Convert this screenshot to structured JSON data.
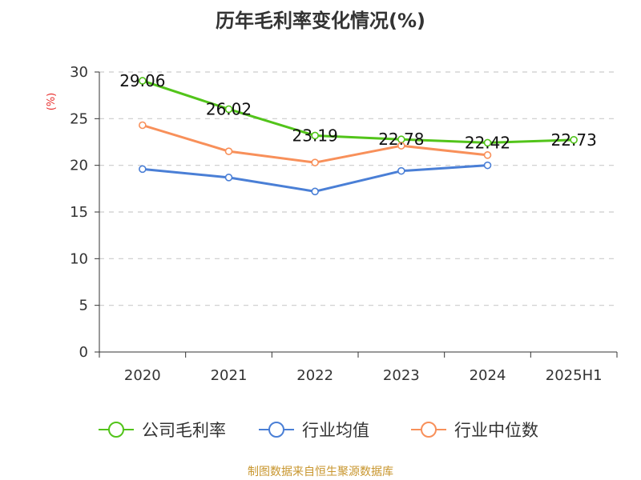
{
  "chart_data": {
    "type": "line",
    "title": "历年毛利率变化情况(%)",
    "ylabel": "(%)",
    "categories": [
      "2020",
      "2021",
      "2022",
      "2023",
      "2024",
      "2025H1"
    ],
    "ylim": [
      0,
      30
    ],
    "yticks": [
      0,
      5,
      10,
      15,
      20,
      25,
      30
    ],
    "grid": "horizontal dashed",
    "legend_position": "bottom",
    "series": [
      {
        "name": "公司毛利率",
        "color": "#52c41a",
        "values": [
          29.06,
          26.02,
          23.19,
          22.78,
          22.42,
          22.73
        ],
        "labels": [
          "29.06",
          "26.02",
          "23.19",
          "22.78",
          "22.42",
          "22.73"
        ]
      },
      {
        "name": "行业均值",
        "color": "#4a7fd6",
        "values": [
          19.6,
          18.7,
          17.2,
          19.4,
          20.0,
          null
        ]
      },
      {
        "name": "行业中位数",
        "color": "#f8905a",
        "values": [
          24.3,
          21.5,
          20.3,
          22.1,
          21.1,
          null
        ]
      }
    ]
  },
  "unit_color": "#e8302f",
  "source_text": "制图数据来自恒生聚源数据库"
}
